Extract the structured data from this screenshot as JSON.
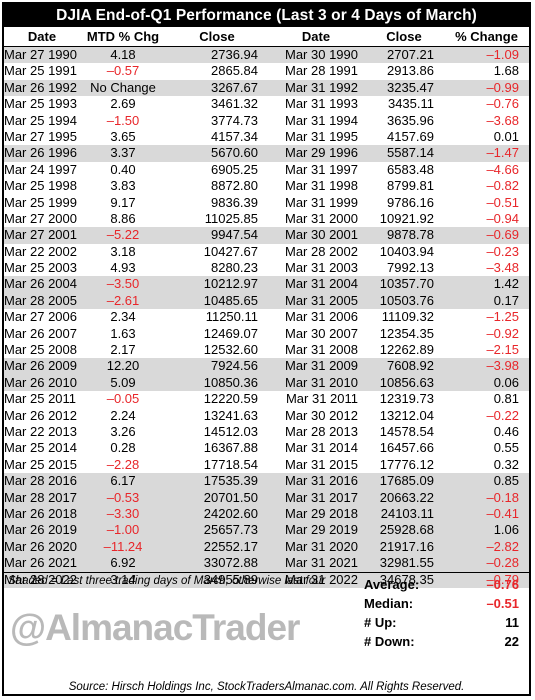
{
  "title": "DJIA End-of-Q1 Performance (Last 3 or 4 Days of March)",
  "headers": [
    "Date",
    "MTD % Chg",
    "Close",
    "Date",
    "Close",
    "% Change"
  ],
  "rows": [
    {
      "d1": "Mar 27 1990",
      "mtd": "4.18",
      "c1": "2736.94",
      "d2": "Mar 30 1990",
      "c2": "2707.21",
      "pct": "–1.09",
      "shaded": true
    },
    {
      "d1": "Mar 25 1991",
      "mtd": "–0.57",
      "c1": "2865.84",
      "d2": "Mar 28 1991",
      "c2": "2913.86",
      "pct": "1.68",
      "shaded": false
    },
    {
      "d1": "Mar 26 1992",
      "mtd": "No Change",
      "c1": "3267.67",
      "d2": "Mar 31 1992",
      "c2": "3235.47",
      "pct": "–0.99",
      "shaded": true
    },
    {
      "d1": "Mar 25 1993",
      "mtd": "2.69",
      "c1": "3461.32",
      "d2": "Mar 31 1993",
      "c2": "3435.11",
      "pct": "–0.76",
      "shaded": false
    },
    {
      "d1": "Mar 25 1994",
      "mtd": "–1.50",
      "c1": "3774.73",
      "d2": "Mar 31 1994",
      "c2": "3635.96",
      "pct": "–3.68",
      "shaded": false
    },
    {
      "d1": "Mar 27 1995",
      "mtd": "3.65",
      "c1": "4157.34",
      "d2": "Mar 31 1995",
      "c2": "4157.69",
      "pct": "0.01",
      "shaded": false
    },
    {
      "d1": "Mar 26 1996",
      "mtd": "3.37",
      "c1": "5670.60",
      "d2": "Mar 29 1996",
      "c2": "5587.14",
      "pct": "–1.47",
      "shaded": true
    },
    {
      "d1": "Mar 24 1997",
      "mtd": "0.40",
      "c1": "6905.25",
      "d2": "Mar 31 1997",
      "c2": "6583.48",
      "pct": "–4.66",
      "shaded": false
    },
    {
      "d1": "Mar 25 1998",
      "mtd": "3.83",
      "c1": "8872.80",
      "d2": "Mar 31 1998",
      "c2": "8799.81",
      "pct": "–0.82",
      "shaded": false
    },
    {
      "d1": "Mar 25 1999",
      "mtd": "9.17",
      "c1": "9836.39",
      "d2": "Mar 31 1999",
      "c2": "9786.16",
      "pct": "–0.51",
      "shaded": false
    },
    {
      "d1": "Mar 27 2000",
      "mtd": "8.86",
      "c1": "11025.85",
      "d2": "Mar 31 2000",
      "c2": "10921.92",
      "pct": "–0.94",
      "shaded": false
    },
    {
      "d1": "Mar 27 2001",
      "mtd": "–5.22",
      "c1": "9947.54",
      "d2": "Mar 30 2001",
      "c2": "9878.78",
      "pct": "–0.69",
      "shaded": true
    },
    {
      "d1": "Mar 22 2002",
      "mtd": "3.18",
      "c1": "10427.67",
      "d2": "Mar 28 2002",
      "c2": "10403.94",
      "pct": "–0.23",
      "shaded": false
    },
    {
      "d1": "Mar 25 2003",
      "mtd": "4.93",
      "c1": "8280.23",
      "d2": "Mar 31 2003",
      "c2": "7992.13",
      "pct": "–3.48",
      "shaded": false
    },
    {
      "d1": "Mar 26 2004",
      "mtd": "–3.50",
      "c1": "10212.97",
      "d2": "Mar 31 2004",
      "c2": "10357.70",
      "pct": "1.42",
      "shaded": true
    },
    {
      "d1": "Mar 28 2005",
      "mtd": "–2.61",
      "c1": "10485.65",
      "d2": "Mar 31 2005",
      "c2": "10503.76",
      "pct": "0.17",
      "shaded": true
    },
    {
      "d1": "Mar 27 2006",
      "mtd": "2.34",
      "c1": "11250.11",
      "d2": "Mar 31 2006",
      "c2": "11109.32",
      "pct": "–1.25",
      "shaded": false
    },
    {
      "d1": "Mar 26 2007",
      "mtd": "1.63",
      "c1": "12469.07",
      "d2": "Mar 30 2007",
      "c2": "12354.35",
      "pct": "–0.92",
      "shaded": false
    },
    {
      "d1": "Mar 25 2008",
      "mtd": "2.17",
      "c1": "12532.60",
      "d2": "Mar 31 2008",
      "c2": "12262.89",
      "pct": "–2.15",
      "shaded": false
    },
    {
      "d1": "Mar 26 2009",
      "mtd": "12.20",
      "c1": "7924.56",
      "d2": "Mar 31 2009",
      "c2": "7608.92",
      "pct": "–3.98",
      "shaded": true
    },
    {
      "d1": "Mar 26 2010",
      "mtd": "5.09",
      "c1": "10850.36",
      "d2": "Mar 31 2010",
      "c2": "10856.63",
      "pct": "0.06",
      "shaded": true
    },
    {
      "d1": "Mar 25 2011",
      "mtd": "–0.05",
      "c1": "12220.59",
      "d2": "Mar 31 2011",
      "c2": "12319.73",
      "pct": "0.81",
      "shaded": false
    },
    {
      "d1": "Mar 26 2012",
      "mtd": "2.24",
      "c1": "13241.63",
      "d2": "Mar 30 2012",
      "c2": "13212.04",
      "pct": "–0.22",
      "shaded": false
    },
    {
      "d1": "Mar 22 2013",
      "mtd": "3.26",
      "c1": "14512.03",
      "d2": "Mar 28 2013",
      "c2": "14578.54",
      "pct": "0.46",
      "shaded": false
    },
    {
      "d1": "Mar 25 2014",
      "mtd": "0.28",
      "c1": "16367.88",
      "d2": "Mar 31 2014",
      "c2": "16457.66",
      "pct": "0.55",
      "shaded": false
    },
    {
      "d1": "Mar 25 2015",
      "mtd": "–2.28",
      "c1": "17718.54",
      "d2": "Mar 31 2015",
      "c2": "17776.12",
      "pct": "0.32",
      "shaded": false
    },
    {
      "d1": "Mar 28 2016",
      "mtd": "6.17",
      "c1": "17535.39",
      "d2": "Mar 31 2016",
      "c2": "17685.09",
      "pct": "0.85",
      "shaded": true
    },
    {
      "d1": "Mar 28 2017",
      "mtd": "–0.53",
      "c1": "20701.50",
      "d2": "Mar 31 2017",
      "c2": "20663.22",
      "pct": "–0.18",
      "shaded": true
    },
    {
      "d1": "Mar 26 2018",
      "mtd": "–3.30",
      "c1": "24202.60",
      "d2": "Mar 29 2018",
      "c2": "24103.11",
      "pct": "–0.41",
      "shaded": true
    },
    {
      "d1": "Mar 26 2019",
      "mtd": "–1.00",
      "c1": "25657.73",
      "d2": "Mar 29 2019",
      "c2": "25928.68",
      "pct": "1.06",
      "shaded": true
    },
    {
      "d1": "Mar 26 2020",
      "mtd": "–11.24",
      "c1": "22552.17",
      "d2": "Mar 31 2020",
      "c2": "21917.16",
      "pct": "–2.82",
      "shaded": true
    },
    {
      "d1": "Mar 26 2021",
      "mtd": "6.92",
      "c1": "33072.88",
      "d2": "Mar 31 2021",
      "c2": "32981.55",
      "pct": "–0.28",
      "shaded": true
    },
    {
      "d1": "Mar 28 2022",
      "mtd": "3.14",
      "c1": "34955.89",
      "d2": "Mar 31 2022",
      "c2": "34678.35",
      "pct": "–0.79",
      "shaded": true
    }
  ],
  "note": "Shaded = Last three trading days of March, otherwise last four",
  "stats": [
    {
      "label": "Average:",
      "value": "–0.76",
      "negative": true
    },
    {
      "label": "Median:",
      "value": "–0.51",
      "negative": true
    },
    {
      "label": "# Up:",
      "value": "11",
      "negative": false
    },
    {
      "label": "# Down:",
      "value": "22",
      "negative": false
    }
  ],
  "logo_text": "@AlmanacTrader",
  "source": "Source: Hirsch Holdings Inc, StockTradersAlmanac.com. All Rights Reserved.",
  "colors": {
    "negative": "#e8262a",
    "shade": "#d9d9d9",
    "title_bg": "#000000",
    "logo": "#b9b9b9"
  }
}
